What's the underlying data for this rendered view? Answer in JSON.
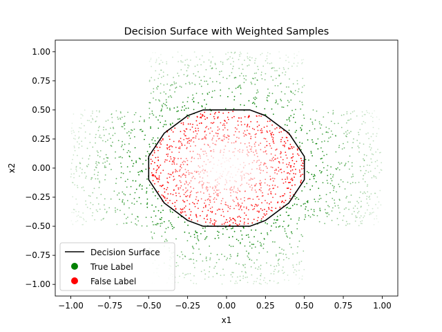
{
  "chart_data": {
    "type": "scatter",
    "title": "Decision Surface with Weighted Samples",
    "xlabel": "x1",
    "ylabel": "x2",
    "xlim": [
      -1.1,
      1.1
    ],
    "ylim": [
      -1.1,
      1.1
    ],
    "xticks": [
      "−1.00",
      "−0.75",
      "−0.50",
      "−0.25",
      "0.00",
      "0.25",
      "0.50",
      "0.75",
      "1.00"
    ],
    "yticks": [
      "−1.00",
      "−0.75",
      "−0.50",
      "−0.25",
      "0.00",
      "0.25",
      "0.50",
      "0.75",
      "1.00"
    ],
    "grid": false,
    "legend_position": "lower-left",
    "legend": [
      {
        "label": "Decision Surface",
        "kind": "line",
        "color": "#000000"
      },
      {
        "label": "True Label",
        "kind": "marker",
        "color": "#008000"
      },
      {
        "label": "False Label",
        "kind": "marker",
        "color": "#ff0000"
      }
    ],
    "series": [
      {
        "name": "True Label",
        "color": "#008000",
        "region": "outside circle of radius 0.5 (arms within |x1|<0.5 or |x2|<0.5)",
        "n_points": 1600
      },
      {
        "name": "False Label",
        "color": "#ff0000",
        "region": "inside circle of radius 0.5",
        "n_points": 1100
      }
    ],
    "decision_surface": {
      "name": "Decision Surface",
      "color": "#000000",
      "x": [
        -0.15,
        0.15,
        0.25,
        0.25,
        0.35,
        0.35,
        0.4,
        0.4,
        0.45,
        0.45,
        0.5,
        0.5,
        0.45,
        0.45,
        0.4,
        0.4,
        0.35,
        0.35,
        0.25,
        0.25,
        0.15,
        0.15,
        -0.15,
        -0.15,
        -0.25,
        -0.25,
        -0.35,
        -0.35,
        -0.4,
        -0.4,
        -0.45,
        -0.45,
        -0.5,
        -0.5,
        -0.45,
        -0.45,
        -0.4,
        -0.4,
        -0.35,
        -0.35,
        -0.25,
        -0.25,
        -0.15,
        -0.15
      ],
      "y": [
        0.5,
        0.5,
        0.45,
        0.45,
        0.35,
        0.35,
        0.3,
        0.3,
        0.2,
        0.2,
        0.1,
        -0.1,
        -0.2,
        -0.2,
        -0.3,
        -0.3,
        -0.35,
        -0.35,
        -0.45,
        -0.45,
        -0.5,
        -0.5,
        -0.5,
        -0.5,
        -0.45,
        -0.45,
        -0.35,
        -0.35,
        -0.3,
        -0.3,
        -0.2,
        -0.2,
        -0.1,
        0.1,
        0.2,
        0.2,
        0.3,
        0.3,
        0.35,
        0.35,
        0.45,
        0.45,
        0.5,
        0.5
      ]
    }
  }
}
